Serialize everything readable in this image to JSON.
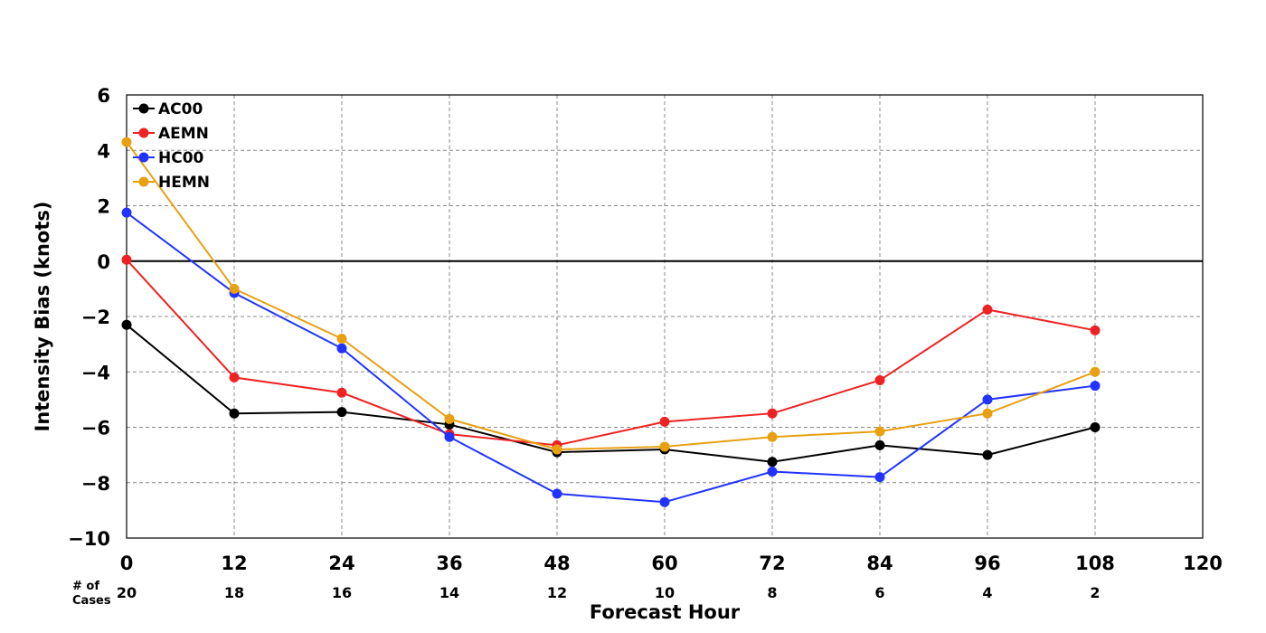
{
  "chart_data": {
    "type": "line",
    "title": "",
    "xlabel": "Forecast Hour",
    "ylabel": "Intensity Bias (knots)",
    "xlim": [
      0,
      120
    ],
    "ylim": [
      -10,
      6
    ],
    "x_ticks": [
      0,
      12,
      24,
      36,
      48,
      60,
      72,
      84,
      96,
      108,
      120
    ],
    "y_ticks": [
      -10,
      -8,
      -6,
      -4,
      -2,
      0,
      2,
      4,
      6
    ],
    "y_tick_labels": [
      "−10",
      "−8",
      "−6",
      "−4",
      "−2",
      "0",
      "2",
      "4",
      "6"
    ],
    "grid": true,
    "legend_position": "top-left",
    "x": [
      0,
      12,
      24,
      36,
      48,
      60,
      72,
      84,
      96,
      108
    ],
    "series": [
      {
        "name": "AC00",
        "color": "#000000",
        "values": [
          -2.3,
          -5.5,
          -5.45,
          -5.9,
          -6.9,
          -6.8,
          -7.25,
          -6.65,
          -7.0,
          -6.0
        ]
      },
      {
        "name": "AEMN",
        "color": "#ee2222",
        "values": [
          0.05,
          -4.2,
          -4.75,
          -6.25,
          -6.65,
          -5.8,
          -5.5,
          -4.3,
          -1.75,
          -2.5
        ]
      },
      {
        "name": "HC00",
        "color": "#2233ff",
        "values": [
          1.75,
          -1.15,
          -3.15,
          -6.35,
          -8.4,
          -8.7,
          -7.6,
          -7.8,
          -5.0,
          -4.5
        ]
      },
      {
        "name": "HEMN",
        "color": "#e8a010",
        "values": [
          4.3,
          -1.0,
          -2.8,
          -5.7,
          -6.8,
          -6.7,
          -6.35,
          -6.15,
          -5.5,
          -4.0
        ]
      }
    ],
    "cases": {
      "header": [
        "# of",
        "Cases"
      ],
      "counts": [
        "20",
        "18",
        "16",
        "14",
        "12",
        "10",
        "8",
        "6",
        "4",
        "2"
      ]
    }
  }
}
